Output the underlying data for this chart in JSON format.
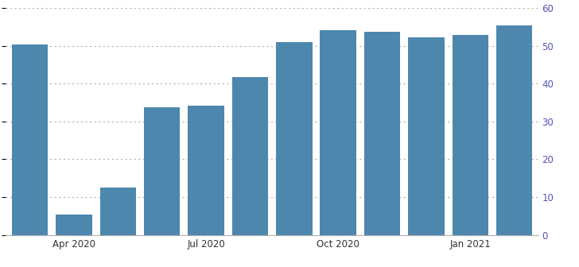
{
  "x_tick_labels": [
    "Apr 2020",
    "Jul 2020",
    "Oct 2020",
    "Jan 2021"
  ],
  "x_tick_positions": [
    1,
    4,
    7,
    10
  ],
  "values": [
    50.3,
    5.4,
    12.6,
    33.7,
    34.2,
    41.8,
    51.0,
    54.1,
    53.7,
    52.3,
    52.8,
    55.3
  ],
  "bar_color": "#4d87ae",
  "ylim": [
    0,
    60
  ],
  "yticks": [
    0,
    10,
    20,
    30,
    40,
    50,
    60
  ],
  "grid_color": "#b0b0b0",
  "background_color": "#ffffff",
  "right_tick_color": "#5555bb",
  "bottom_tick_color": "#333333",
  "figsize": [
    7.28,
    3.36
  ],
  "dpi": 100
}
